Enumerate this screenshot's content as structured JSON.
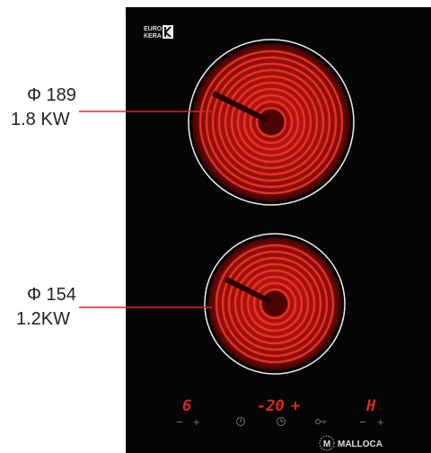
{
  "labels": [
    {
      "size": "Φ 189",
      "power": "1.8 KW"
    },
    {
      "size": "Φ 154",
      "power": "1.2KW"
    }
  ],
  "logo": {
    "line1": "EURO",
    "line2": "KERA"
  },
  "displays": {
    "left": "6",
    "center": "-20",
    "center_plus": "+",
    "right": "H"
  },
  "controls": {
    "minus": "−",
    "plus": "+"
  },
  "brand": {
    "mark": "M",
    "name": "MALLOCA"
  }
}
